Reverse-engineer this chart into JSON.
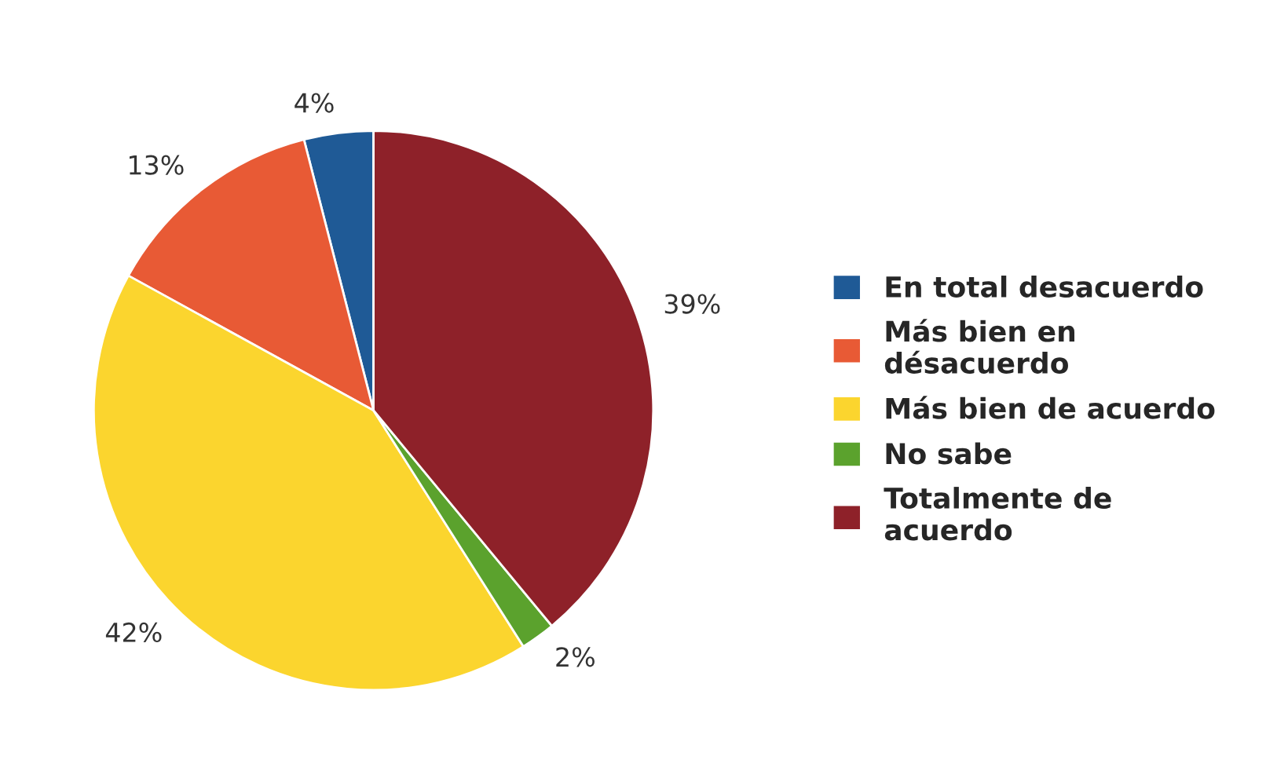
{
  "chart_data": {
    "type": "pie",
    "categories": [
      "En total desacuerdo",
      "Más bien en\ndésacuerdo",
      "Más bien de acuerdo",
      "No sabe",
      "Totalmente de\nacuerdo"
    ],
    "values": [
      4,
      13,
      42,
      2,
      39
    ],
    "value_labels": [
      "4%",
      "13%",
      "42%",
      "2%",
      "39%"
    ],
    "colors": [
      "#1f5a96",
      "#e85a35",
      "#fbd52e",
      "#5ba22d",
      "#8e2129"
    ],
    "legend": "right"
  }
}
